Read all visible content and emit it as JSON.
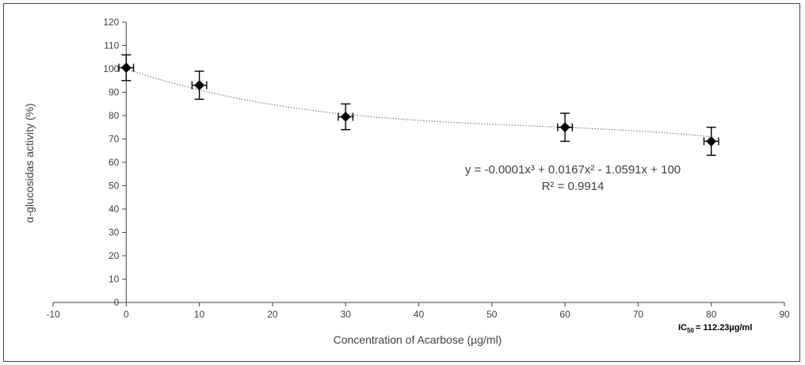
{
  "chart_data": {
    "type": "scatter",
    "title": "",
    "xlabel": "Concentration of Acarbose (µg/ml)",
    "ylabel": "α-glucosidas activity (%)",
    "xlim": [
      -10,
      90
    ],
    "ylim": [
      0,
      120
    ],
    "x_ticks": [
      -10,
      0,
      10,
      20,
      30,
      40,
      50,
      60,
      70,
      80,
      90
    ],
    "y_ticks": [
      0,
      10,
      20,
      30,
      40,
      50,
      60,
      70,
      80,
      90,
      100,
      110,
      120
    ],
    "grid": false,
    "points": [
      {
        "x": 0,
        "y": 100.5,
        "y_err": 5.5,
        "x_err": 1
      },
      {
        "x": 10,
        "y": 93,
        "y_err": 6,
        "x_err": 1
      },
      {
        "x": 30,
        "y": 79.5,
        "y_err": 5.5,
        "x_err": 1
      },
      {
        "x": 60,
        "y": 75,
        "y_err": 6,
        "x_err": 1
      },
      {
        "x": 80,
        "y": 69,
        "y_err": 6,
        "x_err": 1
      }
    ],
    "trendline": {
      "type": "polynomial",
      "coefficients": [
        -0.0001,
        0.0167,
        -1.0591,
        100
      ],
      "equation_label": "y = -0.0001x³ + 0.0167x² - 1.0591x + 100",
      "r2_label": "R² = 0.9914"
    },
    "annotation": {
      "ic_prefix": "IC",
      "ic_sub": "50",
      "ic_value": "= 112.23µg/ml"
    },
    "colors": {
      "marker": "#000000",
      "axis": "#404040",
      "trendline": "#808080",
      "text": "#404040"
    }
  }
}
